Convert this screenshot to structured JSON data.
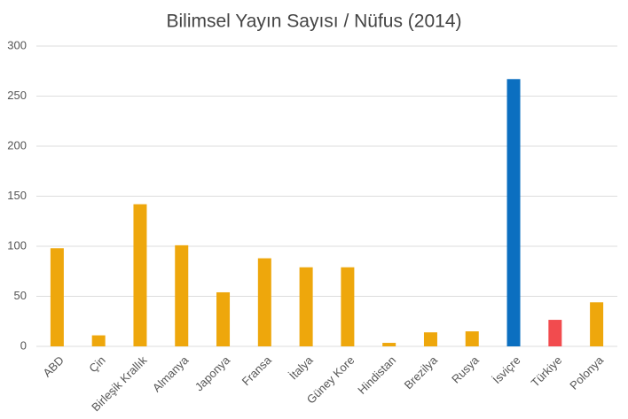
{
  "chart_data": {
    "type": "bar",
    "title": "Bilimsel Yayın Sayısı / Nüfus (2014)",
    "categories": [
      "ABD",
      "Çin",
      "Birleşik Krallık",
      "Almanya",
      "Japonya",
      "Fransa",
      "İtalya",
      "Güney Kore",
      "Hindistan",
      "Brezilya",
      "Rusya",
      "İsviçre",
      "Türkiye",
      "Polonya"
    ],
    "values": [
      98,
      11,
      142,
      101,
      54,
      88,
      79,
      79,
      3.5,
      14,
      15,
      267,
      26.5,
      44
    ],
    "colors": [
      "#eea70c",
      "#eea70c",
      "#eea70c",
      "#eea70c",
      "#eea70c",
      "#eea70c",
      "#eea70c",
      "#eea70c",
      "#eea70c",
      "#eea70c",
      "#eea70c",
      "#0b6fc0",
      "#f24b4e",
      "#eea70c"
    ],
    "ylim": [
      0,
      300
    ],
    "yticks": [
      0,
      50,
      100,
      150,
      200,
      250,
      300
    ],
    "grid": true
  }
}
